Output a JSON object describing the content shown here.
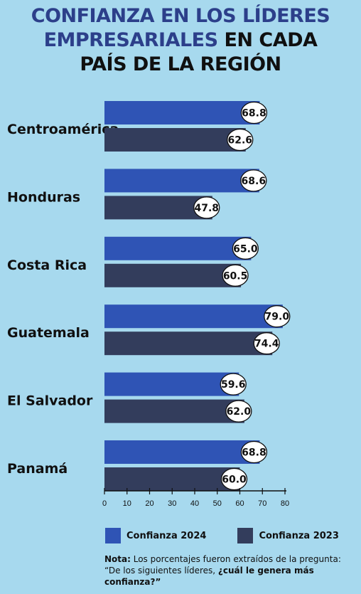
{
  "title": {
    "line1": "CONFIANZA EN LOS LÍDERES",
    "line2a": "EMPRESARIALES",
    "line2b": " EN CADA",
    "line3": "PAÍS DE LA REGIÓN"
  },
  "colors": {
    "background": "#a7d9ee",
    "series_2024": "#2f54b5",
    "series_2023": "#333d5c",
    "title_blue": "#2c3f8a"
  },
  "chart_data": {
    "type": "bar",
    "orientation": "horizontal",
    "categories": [
      "Centroamérica",
      "Honduras",
      "Costa Rica",
      "Guatemala",
      "El Salvador",
      "Panamá"
    ],
    "series": [
      {
        "name": "Confianza 2024",
        "values": [
          68.8,
          68.6,
          65.0,
          79.0,
          59.6,
          68.8
        ]
      },
      {
        "name": "Confianza 2023",
        "values": [
          62.6,
          47.8,
          60.5,
          74.4,
          62.0,
          60.0
        ]
      }
    ],
    "value_labels": [
      [
        "68.8",
        "68.6",
        "65.0",
        "79.0",
        "59.6",
        "68.8"
      ],
      [
        "62.6",
        "47.8",
        "60.5",
        "74.4",
        "62.0",
        "60.0"
      ]
    ],
    "xlim": [
      0,
      80
    ],
    "xticks": [
      "0",
      "10",
      "20",
      "30",
      "40",
      "50",
      "60",
      "70",
      "80"
    ],
    "legend_placement": "bottom"
  },
  "legend": {
    "item_2024": "Confianza 2024",
    "item_2023": "Confianza 2023"
  },
  "note": {
    "label": "Nota:",
    "text1": " Los porcentajes fueron extraídos de la pregunta: “De los siguientes líderes, ",
    "text2": "¿cuál le genera más confianza?”"
  }
}
